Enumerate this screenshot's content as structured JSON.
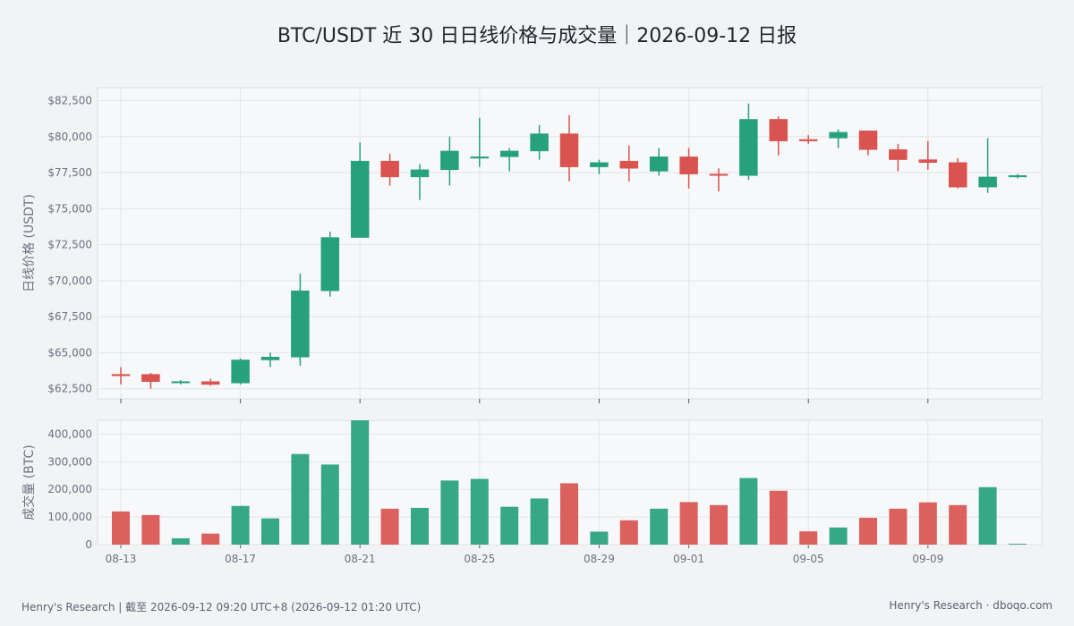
{
  "title": "BTC/USDT 近 30 日日线价格与成交量｜2026-09-12 日报",
  "footer": {
    "left": "Henry's Research | 截至 2026-09-12 09:20 UTC+8 (2026-09-12 01:20 UTC)",
    "right": "Henry's Research · dboqo.com"
  },
  "colors": {
    "up": "#26a17b",
    "down": "#d9534f",
    "grid": "#e3e5e8",
    "panel": "#f7f8f9",
    "axis_text": "#6b7280"
  },
  "chart_data": [
    {
      "type": "candlestick",
      "ylabel": "日线价格 (USDT)",
      "ylim": [
        61800,
        83400
      ],
      "yticks": [
        62500,
        65000,
        67500,
        70000,
        72500,
        75000,
        77500,
        80000,
        82500
      ],
      "ytick_labels": [
        "$62,500",
        "$65,000",
        "$67,500",
        "$70,000",
        "$72,500",
        "$75,000",
        "$77,500",
        "$80,000",
        "$82,500"
      ],
      "x": [
        "2026-08-13",
        "2026-08-14",
        "2026-08-15",
        "2026-08-16",
        "2026-08-17",
        "2026-08-18",
        "2026-08-19",
        "2026-08-20",
        "2026-08-21",
        "2026-08-22",
        "2026-08-23",
        "2026-08-24",
        "2026-08-25",
        "2026-08-26",
        "2026-08-27",
        "2026-08-28",
        "2026-08-29",
        "2026-08-30",
        "2026-08-31",
        "2026-09-01",
        "2026-09-02",
        "2026-09-03",
        "2026-09-04",
        "2026-09-05",
        "2026-09-06",
        "2026-09-07",
        "2026-09-08",
        "2026-09-09",
        "2026-09-10",
        "2026-09-11",
        "2026-09-12"
      ],
      "open": [
        63500,
        63500,
        63000,
        63000,
        62900,
        64500,
        64700,
        69300,
        73000,
        78300,
        77200,
        77700,
        78500,
        78600,
        79000,
        80200,
        77900,
        78300,
        77600,
        78600,
        77400,
        77300,
        81200,
        79800,
        79900,
        80400,
        79100,
        78400,
        78200,
        76500,
        77200
      ],
      "high": [
        64000,
        63600,
        63100,
        63200,
        64600,
        65000,
        70500,
        73400,
        79600,
        78800,
        78100,
        80000,
        81300,
        79200,
        80800,
        81500,
        78400,
        79400,
        79200,
        79200,
        77800,
        82300,
        81400,
        80100,
        80500,
        80300,
        79500,
        79700,
        78500,
        79900,
        77400
      ],
      "low": [
        62800,
        62500,
        62800,
        62700,
        62800,
        64000,
        64100,
        68900,
        73000,
        76600,
        75600,
        76600,
        77900,
        77600,
        78400,
        76900,
        77400,
        76900,
        77300,
        76400,
        76200,
        77000,
        78700,
        79500,
        79200,
        78700,
        77600,
        77700,
        76400,
        76100,
        77100
      ],
      "close": [
        63400,
        63000,
        63000,
        62800,
        64500,
        64700,
        69300,
        73000,
        78300,
        77200,
        77700,
        79000,
        78600,
        79000,
        80200,
        77900,
        78200,
        77800,
        78600,
        77400,
        77300,
        81200,
        79700,
        79700,
        80300,
        79100,
        78400,
        78200,
        76500,
        77200,
        77300
      ],
      "xtick_labels": [
        "08-13",
        "08-17",
        "08-21",
        "08-25",
        "08-29",
        "09-01",
        "09-05",
        "09-09"
      ],
      "xtick_index": [
        0,
        4,
        8,
        12,
        16,
        19,
        23,
        27
      ]
    },
    {
      "type": "bar",
      "ylabel": "成交量 (BTC)",
      "ylim": [
        0,
        450000
      ],
      "yticks": [
        0,
        100000,
        200000,
        300000,
        400000
      ],
      "ytick_labels": [
        "0",
        "100,000",
        "200,000",
        "300,000",
        "400,000"
      ],
      "values": [
        120000,
        107000,
        23000,
        40000,
        140000,
        95000,
        328000,
        290000,
        450000,
        130000,
        133000,
        232000,
        238000,
        137000,
        167000,
        222000,
        47000,
        88000,
        130000,
        154000,
        143000,
        241000,
        195000,
        48000,
        62000,
        97000,
        130000,
        153000,
        143000,
        208000,
        3000
      ]
    }
  ]
}
